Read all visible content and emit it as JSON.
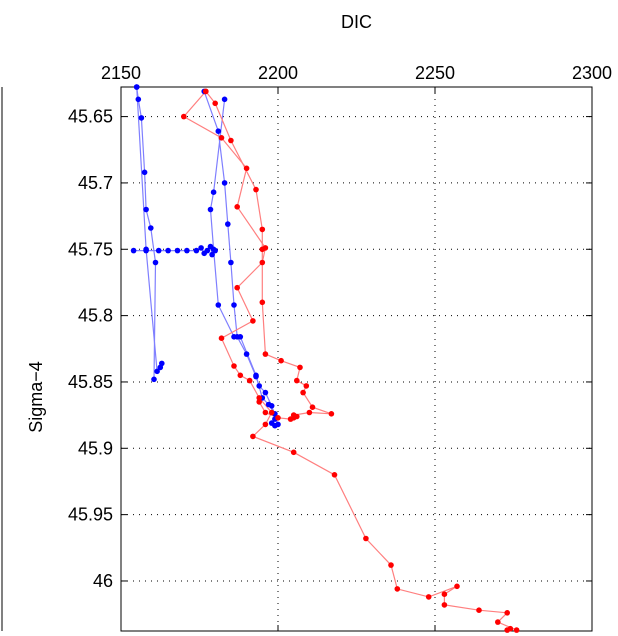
{
  "chart_data": {
    "type": "scatter",
    "title": "",
    "xlabel": "DIC",
    "ylabel": "Sigma−4",
    "xlim": [
      2150,
      2300
    ],
    "ylim": [
      45.6277,
      46.0377
    ],
    "y_reversed": true,
    "x_axis_position": "top",
    "grid": true,
    "x_ticks": [
      2150,
      2200,
      2250,
      2300
    ],
    "x_tick_labels": [
      "2150",
      "2200",
      "2250",
      "2300"
    ],
    "y_ticks": [
      45.65,
      45.7,
      45.75,
      45.8,
      45.85,
      45.9,
      45.95,
      46.0
    ],
    "y_tick_labels": [
      "45.65",
      "45.7",
      "45.75",
      "45.8",
      "45.85",
      "45.9",
      "45.95",
      "46"
    ],
    "series": [
      {
        "color": "#0000ff",
        "line_color": "#7f7fff",
        "segments": [
          [
            [
              2155,
              45.627
            ],
            [
              2155.5,
              45.637
            ],
            [
              2156.5,
              45.651
            ],
            [
              2157.5,
              45.692
            ],
            [
              2158,
              45.72
            ],
            [
              2159.5,
              45.734
            ],
            [
              2161,
              45.76
            ],
            [
              2160.5,
              45.848
            ]
          ],
          [
            [
              2183,
              45.637
            ],
            [
              2179.5,
              45.707
            ],
            [
              2178.5,
              45.72
            ],
            [
              2179.5,
              45.75
            ],
            [
              2181,
              45.792
            ],
            [
              2186,
              45.816
            ],
            [
              2188,
              45.816
            ],
            [
              2193,
              45.845
            ],
            [
              2195,
              45.862
            ],
            [
              2197,
              45.867
            ],
            [
              2199,
              45.874
            ],
            [
              2199,
              45.878
            ],
            [
              2198,
              45.881
            ],
            [
              2199,
              45.883
            ]
          ],
          [
            [
              2163,
              45.836
            ],
            [
              2162.5,
              45.839
            ],
            [
              2161.5,
              45.842
            ],
            [
              2158,
              45.75
            ],
            [
              2155,
              45.627
            ]
          ],
          [
            [
              2154,
              45.751
            ],
            [
              2158,
              45.751
            ],
            [
              2162,
              45.751
            ],
            [
              2165,
              45.751
            ],
            [
              2168,
              45.751
            ],
            [
              2171,
              45.751
            ],
            [
              2174,
              45.751
            ],
            [
              2175.5,
              45.749
            ],
            [
              2176.5,
              45.753
            ],
            [
              2177.5,
              45.751
            ],
            [
              2178.5,
              45.748
            ],
            [
              2179,
              45.754
            ],
            [
              2180,
              45.751
            ]
          ],
          [
            [
              2176.5,
              45.631
            ],
            [
              2181,
              45.661
            ],
            [
              2183,
              45.7
            ],
            [
              2184,
              45.731
            ],
            [
              2185,
              45.76
            ],
            [
              2186,
              45.792
            ],
            [
              2187,
              45.816
            ],
            [
              2190,
              45.829
            ],
            [
              2193,
              45.846
            ],
            [
              2194,
              45.853
            ],
            [
              2196,
              45.858
            ],
            [
              2198,
              45.868
            ],
            [
              2200,
              45.882
            ]
          ]
        ]
      },
      {
        "color": "#ff0000",
        "line_color": "#ff7f7f",
        "segments": [
          [
            [
              2177,
              45.631
            ],
            [
              2170,
              45.65
            ],
            [
              2182,
              45.666
            ],
            [
              2190,
              45.689
            ],
            [
              2187,
              45.718
            ],
            [
              2196,
              45.749
            ],
            [
              2195,
              45.76
            ],
            [
              2187,
              45.779
            ],
            [
              2192,
              45.804
            ],
            [
              2182,
              45.817
            ],
            [
              2186,
              45.838
            ],
            [
              2188,
              45.845
            ],
            [
              2191,
              45.849
            ],
            [
              2194,
              45.862
            ],
            [
              2198,
              45.873
            ],
            [
              2196,
              45.882
            ],
            [
              2192,
              45.891
            ],
            [
              2205,
              45.903
            ],
            [
              2218,
              45.92
            ],
            [
              2228,
              45.968
            ],
            [
              2236,
              45.988
            ],
            [
              2238,
              46.006
            ],
            [
              2248,
              46.012
            ],
            [
              2257,
              46.004
            ],
            [
              2253,
              46.01
            ],
            [
              2253,
              46.018
            ],
            [
              2264,
              46.022
            ],
            [
              2273,
              46.024
            ],
            [
              2270,
              46.031
            ],
            [
              2276,
              46.037
            ]
          ],
          [
            [
              2177,
              45.631
            ],
            [
              2180,
              45.64
            ],
            [
              2185,
              45.668
            ],
            [
              2193,
              45.705
            ],
            [
              2195,
              45.735
            ],
            [
              2195,
              45.75
            ],
            [
              2195,
              45.79
            ],
            [
              2196,
              45.829
            ],
            [
              2201,
              45.834
            ],
            [
              2207,
              45.839
            ],
            [
              2206,
              45.849
            ],
            [
              2209,
              45.853
            ],
            [
              2208,
              45.858
            ],
            [
              2211,
              45.869
            ],
            [
              2217,
              45.874
            ],
            [
              2210,
              45.873
            ],
            [
              2205,
              45.875
            ],
            [
              2206,
              45.876
            ],
            [
              2205,
              45.877
            ],
            [
              2204,
              45.878
            ],
            [
              2200,
              45.877
            ],
            [
              2196,
              45.873
            ],
            [
              2194,
              45.865
            ]
          ],
          [
            [
              2273,
              46.037
            ],
            [
              2274,
              46.036
            ]
          ]
        ]
      }
    ]
  }
}
